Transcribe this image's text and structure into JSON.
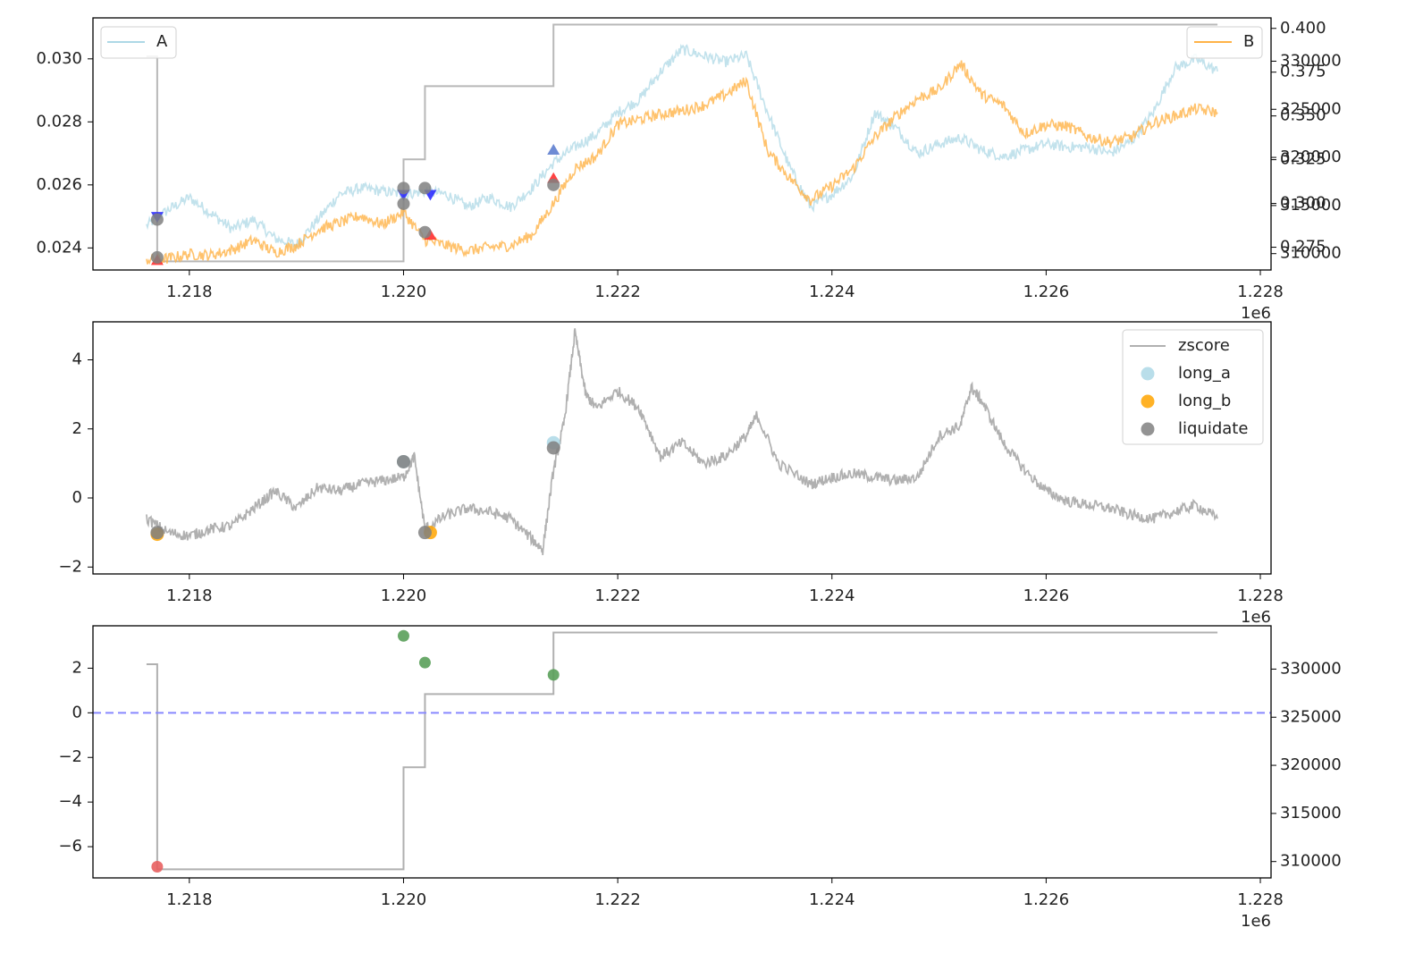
{
  "chart_data": [
    {
      "panel": "top",
      "type": "line",
      "title": "",
      "xlabel": "",
      "xlim": [
        1217100,
        1228100
      ],
      "x_ticks": [
        1218000,
        1220000,
        1222000,
        1224000,
        1226000,
        1228000
      ],
      "x_tick_labels": [
        "1.218",
        "1.220",
        "1.222",
        "1.224",
        "1.226",
        "1.228"
      ],
      "x_offset_label": "1e6",
      "ylim_left": [
        0.0233,
        0.0313
      ],
      "y_ticks_left": [
        0.024,
        0.026,
        0.028,
        0.03
      ],
      "y_tick_labels_left": [
        "0.024",
        "0.026",
        "0.028",
        "0.030"
      ],
      "ylim_right_B": [
        0.262,
        0.406
      ],
      "y_ticks_right_B": [
        0.275,
        0.3,
        0.325,
        0.35,
        0.375,
        0.4
      ],
      "y_tick_labels_right_B": [
        "0.275",
        "0.300",
        "0.325",
        "0.350",
        "0.375",
        "0.400"
      ],
      "ylim_right_equity": [
        308300,
        334500
      ],
      "y_ticks_right_equity": [
        310000,
        315000,
        320000,
        325000,
        330000
      ],
      "y_tick_labels_right_equity": [
        "310000",
        "315000",
        "320000",
        "325000",
        "330000"
      ],
      "grid": false,
      "legend_left": {
        "position": "upper-left",
        "entries": [
          "A"
        ]
      },
      "legend_right": {
        "position": "upper-right",
        "entries": [
          "B"
        ]
      },
      "series": [
        {
          "name": "A",
          "axis": "left",
          "color": "#add8e6",
          "x": [
            1217600,
            1217800,
            1218000,
            1218200,
            1218400,
            1218600,
            1218800,
            1219000,
            1219200,
            1219400,
            1219600,
            1219800,
            1220000,
            1220200,
            1220400,
            1220600,
            1220800,
            1221000,
            1221200,
            1221400,
            1221600,
            1221800,
            1222000,
            1222200,
            1222400,
            1222600,
            1222800,
            1223000,
            1223200,
            1223400,
            1223600,
            1223800,
            1224000,
            1224200,
            1224400,
            1224600,
            1224800,
            1225000,
            1225200,
            1225400,
            1225600,
            1225800,
            1226000,
            1226200,
            1226400,
            1226600,
            1226800,
            1227000,
            1227200,
            1227400,
            1227600
          ],
          "y": [
            0.0247,
            0.0252,
            0.0256,
            0.0251,
            0.0246,
            0.0249,
            0.0243,
            0.0241,
            0.0249,
            0.0257,
            0.0259,
            0.0258,
            0.0257,
            0.0258,
            0.0257,
            0.0253,
            0.0256,
            0.0253,
            0.0259,
            0.0267,
            0.0272,
            0.0276,
            0.0283,
            0.0287,
            0.0296,
            0.0303,
            0.0301,
            0.0299,
            0.0301,
            0.0283,
            0.0266,
            0.0253,
            0.0257,
            0.0263,
            0.0283,
            0.0278,
            0.027,
            0.0273,
            0.0275,
            0.0271,
            0.0269,
            0.0271,
            0.0273,
            0.0272,
            0.0272,
            0.027,
            0.0274,
            0.0283,
            0.0297,
            0.03,
            0.0296
          ]
        },
        {
          "name": "B",
          "axis": "right",
          "color": "#ffb347",
          "x": [
            1217600,
            1217800,
            1218000,
            1218200,
            1218400,
            1218600,
            1218800,
            1219000,
            1219200,
            1219400,
            1219600,
            1219800,
            1220000,
            1220200,
            1220400,
            1220600,
            1220800,
            1221000,
            1221200,
            1221400,
            1221600,
            1221800,
            1222000,
            1222200,
            1222400,
            1222600,
            1222800,
            1223000,
            1223200,
            1223400,
            1223600,
            1223800,
            1224000,
            1224200,
            1224400,
            1224600,
            1224800,
            1225000,
            1225200,
            1225400,
            1225600,
            1225800,
            1226000,
            1226200,
            1226400,
            1226600,
            1226800,
            1227000,
            1227200,
            1227400,
            1227600
          ],
          "y": [
            0.268,
            0.2685,
            0.271,
            0.2705,
            0.2735,
            0.279,
            0.272,
            0.276,
            0.285,
            0.289,
            0.293,
            0.288,
            0.295,
            0.279,
            0.276,
            0.273,
            0.275,
            0.276,
            0.282,
            0.3,
            0.32,
            0.327,
            0.345,
            0.348,
            0.351,
            0.353,
            0.356,
            0.362,
            0.37,
            0.33,
            0.315,
            0.302,
            0.31,
            0.32,
            0.338,
            0.35,
            0.36,
            0.365,
            0.38,
            0.362,
            0.356,
            0.34,
            0.345,
            0.344,
            0.338,
            0.335,
            0.338,
            0.346,
            0.35,
            0.354,
            0.352
          ]
        },
        {
          "name": "equity",
          "axis": "right-outer",
          "color": "#a0a0a0",
          "step": true,
          "x": [
            1217600,
            1217700,
            1220000,
            1220200,
            1221400,
            1227600
          ],
          "y": [
            330500,
            309200,
            319800,
            327400,
            333800,
            333800
          ]
        }
      ],
      "markers": [
        {
          "type": "triangle-down",
          "color": "#2222ff",
          "x": [
            1217700,
            1220000,
            1220250
          ],
          "y": [
            0.025,
            0.0257,
            0.0257
          ]
        },
        {
          "type": "triangle-up",
          "color": "#ff2222",
          "x": [
            1217700,
            1220250,
            1221400
          ],
          "y": [
            0.0236,
            0.0244,
            0.0262
          ]
        },
        {
          "type": "triangle-up",
          "color": "#5577cc",
          "x": [
            1221400
          ],
          "y": [
            0.0271
          ]
        },
        {
          "type": "circle",
          "color": "#808080",
          "x": [
            1217700,
            1217700,
            1220000,
            1220000,
            1220200,
            1220200,
            1221400
          ],
          "y": [
            0.0249,
            0.0237,
            0.0259,
            0.0254,
            0.0259,
            0.0245,
            0.026
          ]
        }
      ]
    },
    {
      "panel": "middle",
      "type": "line",
      "title": "",
      "xlim": [
        1217100,
        1228100
      ],
      "x_ticks": [
        1218000,
        1220000,
        1222000,
        1224000,
        1226000,
        1228000
      ],
      "x_tick_labels": [
        "1.218",
        "1.220",
        "1.222",
        "1.224",
        "1.226",
        "1.228"
      ],
      "x_offset_label": "1e6",
      "ylim": [
        -2.2,
        5.1
      ],
      "y_ticks": [
        -2,
        0,
        2,
        4
      ],
      "y_tick_labels": [
        "−2",
        "0",
        "2",
        "4"
      ],
      "grid": false,
      "legend": {
        "position": "upper-right",
        "entries": [
          "zscore",
          "long_a",
          "long_b",
          "liquidate"
        ]
      },
      "series": [
        {
          "name": "zscore",
          "color": "#b0b0b0",
          "x": [
            1217600,
            1217800,
            1218000,
            1218200,
            1218400,
            1218600,
            1218800,
            1219000,
            1219200,
            1219400,
            1219600,
            1219800,
            1220000,
            1220100,
            1220200,
            1220400,
            1220600,
            1220800,
            1221000,
            1221200,
            1221300,
            1221400,
            1221500,
            1221600,
            1221700,
            1221800,
            1222000,
            1222200,
            1222400,
            1222600,
            1222800,
            1223000,
            1223200,
            1223300,
            1223500,
            1223800,
            1224000,
            1224200,
            1224400,
            1224600,
            1224800,
            1225000,
            1225200,
            1225300,
            1225400,
            1225600,
            1225800,
            1226000,
            1226200,
            1226400,
            1226600,
            1226800,
            1227000,
            1227200,
            1227400,
            1227600
          ],
          "y": [
            -0.6,
            -1.0,
            -1.1,
            -0.9,
            -0.8,
            -0.3,
            0.2,
            -0.3,
            0.3,
            0.2,
            0.4,
            0.5,
            0.6,
            1.2,
            -0.9,
            -0.5,
            -0.3,
            -0.4,
            -0.6,
            -1.2,
            -1.5,
            0.8,
            2.2,
            4.8,
            3.0,
            2.6,
            3.1,
            2.6,
            1.2,
            1.6,
            1.0,
            1.2,
            1.8,
            2.4,
            1.0,
            0.4,
            0.6,
            0.7,
            0.6,
            0.5,
            0.6,
            1.8,
            2.1,
            3.2,
            2.8,
            1.6,
            0.8,
            0.2,
            -0.1,
            -0.2,
            -0.3,
            -0.5,
            -0.6,
            -0.4,
            -0.2,
            -0.6
          ]
        }
      ],
      "scatter": [
        {
          "name": "long_a",
          "color": "#add8e6",
          "x": [
            1220000,
            1221400
          ],
          "y": [
            1.05,
            1.6
          ]
        },
        {
          "name": "long_b",
          "color": "#ffa500",
          "x": [
            1217700,
            1220250
          ],
          "y": [
            -1.05,
            -1.0
          ]
        },
        {
          "name": "liquidate",
          "color": "#808080",
          "x": [
            1217700,
            1220000,
            1220200,
            1221400
          ],
          "y": [
            -1.0,
            1.05,
            -1.0,
            1.45
          ]
        }
      ]
    },
    {
      "panel": "bottom",
      "type": "line",
      "title": "",
      "xlim": [
        1217100,
        1228100
      ],
      "x_ticks": [
        1218000,
        1220000,
        1222000,
        1224000,
        1226000,
        1228000
      ],
      "x_tick_labels": [
        "1.218",
        "1.220",
        "1.222",
        "1.224",
        "1.226",
        "1.228"
      ],
      "x_offset_label": "1e6",
      "ylim_left": [
        -7.4,
        3.9
      ],
      "y_ticks_left": [
        -6,
        -4,
        -2,
        0,
        2
      ],
      "y_tick_labels_left": [
        "−6",
        "−4",
        "−2",
        "0",
        "2"
      ],
      "ylim_right": [
        308300,
        334500
      ],
      "y_ticks_right": [
        310000,
        315000,
        320000,
        325000,
        330000
      ],
      "y_tick_labels_right": [
        "310000",
        "315000",
        "320000",
        "325000",
        "330000"
      ],
      "grid": false,
      "hline": {
        "y": 0,
        "color": "#8888ff",
        "style": "dashed"
      },
      "series": [
        {
          "name": "equity",
          "axis": "right",
          "color": "#b0b0b0",
          "step": true,
          "x": [
            1217600,
            1217700,
            1220000,
            1220200,
            1221400,
            1227600
          ],
          "y": [
            330500,
            309200,
            319800,
            327400,
            333800,
            333800
          ]
        }
      ],
      "scatter": [
        {
          "name": "loss",
          "color": "#e86060",
          "x": [
            1217700
          ],
          "y": [
            -6.9
          ]
        },
        {
          "name": "profit",
          "color": "#5aa05a",
          "x": [
            1220000,
            1220200,
            1221400
          ],
          "y": [
            3.45,
            2.25,
            1.7
          ]
        }
      ]
    }
  ]
}
